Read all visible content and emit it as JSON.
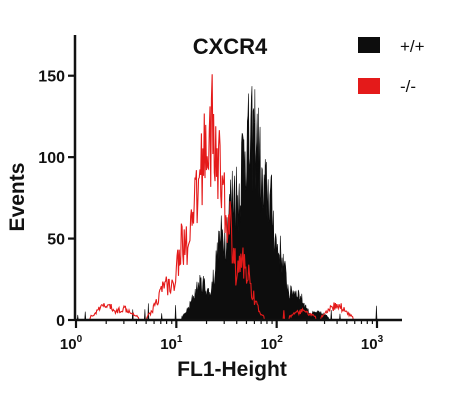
{
  "chart_data": {
    "type": "histogram",
    "title": "CXCR4",
    "xlabel": "FL1-Height",
    "ylabel": "Events",
    "x_scale": "log",
    "xlim": [
      1,
      1000
    ],
    "ylim": [
      0,
      175
    ],
    "x_ticks": [
      {
        "value": 1,
        "base": "10",
        "exp": "0"
      },
      {
        "value": 10,
        "base": "10",
        "exp": "1"
      },
      {
        "value": 100,
        "base": "10",
        "exp": "2"
      },
      {
        "value": 1000,
        "base": "10",
        "exp": "3"
      }
    ],
    "y_ticks": [
      0,
      50,
      100,
      150
    ],
    "legend": {
      "placement": "top-right"
    },
    "series": [
      {
        "name": "+/+",
        "color": "#0d0d0d",
        "style": "filled",
        "peaks": [
          {
            "x": 50,
            "y": 125
          },
          {
            "x": 60,
            "y": 130
          },
          {
            "x": 38,
            "y": 90
          },
          {
            "x": 30,
            "y": 60
          },
          {
            "x": 80,
            "y": 90
          },
          {
            "x": 100,
            "y": 50
          },
          {
            "x": 18,
            "y": 25
          },
          {
            "x": 150,
            "y": 20
          },
          {
            "x": 250,
            "y": 5
          }
        ]
      },
      {
        "name": "-/-",
        "color": "#e41a1a",
        "style": "outline",
        "peaks": [
          {
            "x": 22,
            "y": 133
          },
          {
            "x": 20,
            "y": 125
          },
          {
            "x": 25,
            "y": 112
          },
          {
            "x": 17,
            "y": 90
          },
          {
            "x": 30,
            "y": 80
          },
          {
            "x": 12,
            "y": 55
          },
          {
            "x": 8,
            "y": 25
          },
          {
            "x": 45,
            "y": 40
          },
          {
            "x": 2,
            "y": 10
          },
          {
            "x": 3,
            "y": 8
          },
          {
            "x": 180,
            "y": 6
          },
          {
            "x": 400,
            "y": 10
          }
        ]
      }
    ]
  }
}
